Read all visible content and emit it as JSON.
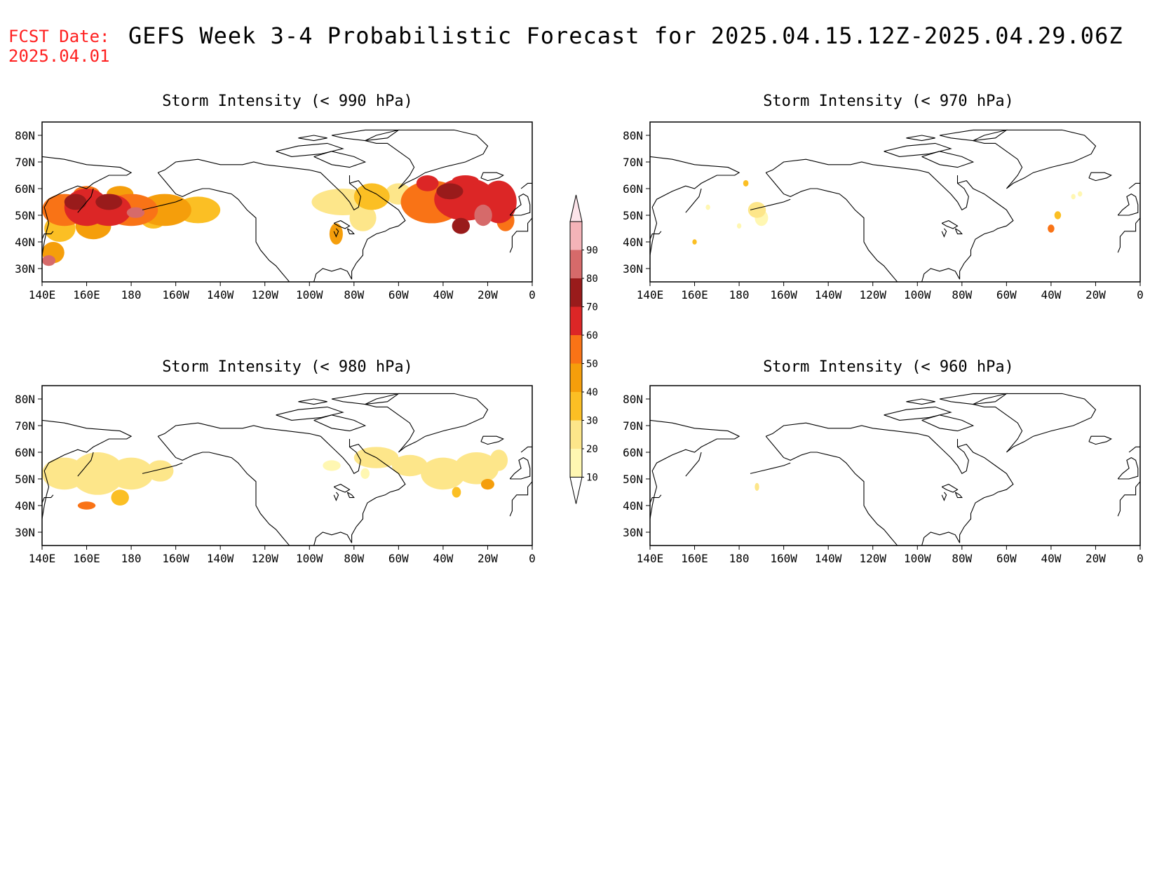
{
  "header": {
    "fcst_label": "FCST Date:",
    "fcst_date": "2025.04.01",
    "title": "GEFS Week 3-4 Probabilistic Forecast for 2025.04.15.12Z-2025.04.29.06Z"
  },
  "panels": [
    {
      "id": "p990",
      "title": "Storm Intensity (< 990 hPa)"
    },
    {
      "id": "p970",
      "title": "Storm Intensity (< 970 hPa)"
    },
    {
      "id": "p980",
      "title": "Storm Intensity (< 980 hPa)"
    },
    {
      "id": "p960",
      "title": "Storm Intensity (< 960 hPa)"
    }
  ],
  "axes": {
    "lon_labels": [
      "140E",
      "160E",
      "180",
      "160W",
      "140W",
      "120W",
      "100W",
      "80W",
      "60W",
      "40W",
      "20W",
      "0"
    ],
    "lat_labels": [
      "80N",
      "70N",
      "60N",
      "50N",
      "40N",
      "30N"
    ]
  },
  "colorbar": {
    "levels": [
      "10",
      "20",
      "30",
      "40",
      "50",
      "60",
      "70",
      "80",
      "90"
    ],
    "colors": [
      "#fff7b2",
      "#fde68a",
      "#fbbf24",
      "#f59e0b",
      "#f97316",
      "#dc2626",
      "#991b1b",
      "#d66a6a",
      "#f4b3b8",
      "#fde4ea"
    ]
  }
}
